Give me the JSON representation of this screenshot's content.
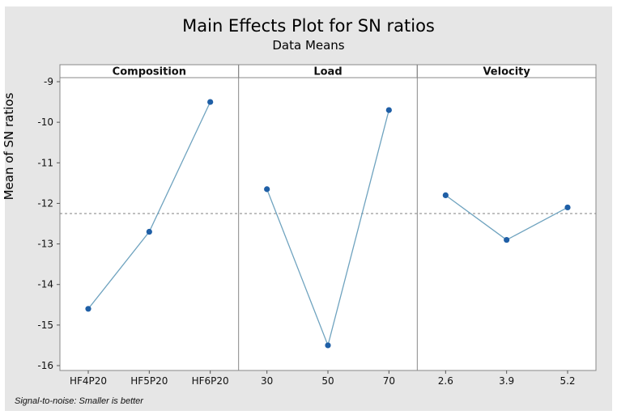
{
  "chart_data": {
    "type": "line",
    "title": "Main Effects Plot for SN ratios",
    "subtitle": "Data Means",
    "ylabel": "Mean of SN ratios",
    "ylim": [
      -16,
      -9
    ],
    "yticks": [
      -9,
      -10,
      -11,
      -12,
      -13,
      -14,
      -15,
      -16
    ],
    "overall_mean": -12.25,
    "panels": [
      {
        "name": "Composition",
        "categories": [
          "HF4P20",
          "HF5P20",
          "HF6P20"
        ],
        "values": [
          -14.6,
          -12.7,
          -9.5
        ]
      },
      {
        "name": "Load",
        "categories": [
          "30",
          "50",
          "70"
        ],
        "values": [
          -11.65,
          -15.5,
          -9.7
        ]
      },
      {
        "name": "Velocity",
        "categories": [
          "2.6",
          "3.9",
          "5.2"
        ],
        "values": [
          -11.8,
          -12.9,
          -12.1
        ]
      }
    ],
    "colors": {
      "line": "#6fa3bf",
      "marker": "#1f5fa6",
      "reference": "#808080"
    }
  },
  "footnote": "Signal-to-noise: Smaller is better"
}
